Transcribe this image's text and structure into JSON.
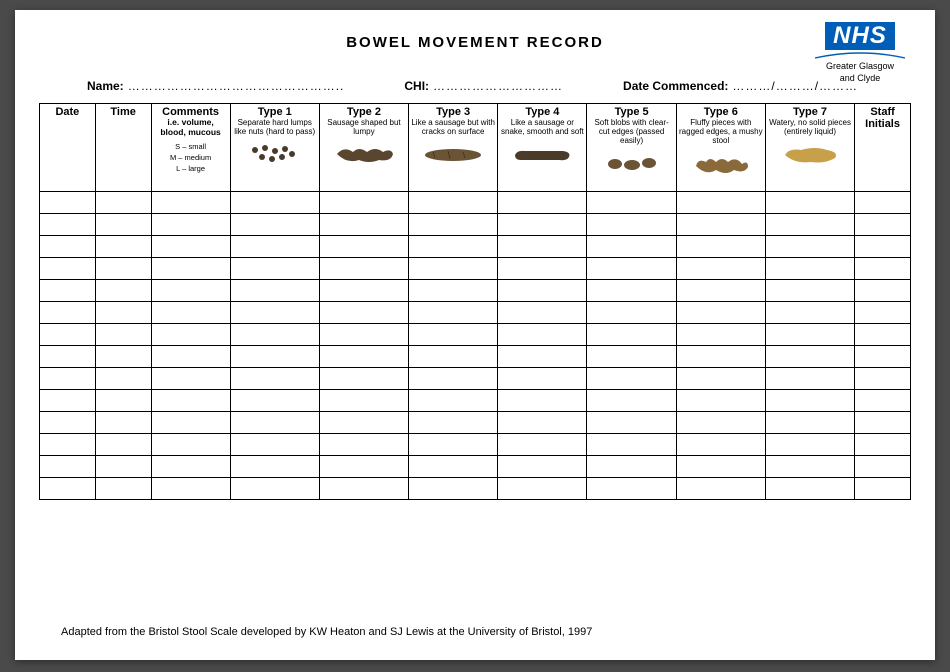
{
  "logo": {
    "text": "NHS",
    "sub1": "Greater Glasgow",
    "sub2": "and Clyde",
    "color": "#005EB8"
  },
  "title": "BOWEL MOVEMENT RECORD",
  "fields": {
    "name_label": "Name:",
    "name_dots": "…………………………………………..",
    "chi_label": "CHI:",
    "chi_dots": "…………………………",
    "date_label": "Date Commenced:",
    "date_dots": "………/………/………"
  },
  "columns": {
    "date": "Date",
    "time": "Time",
    "comments": {
      "head": "Comments",
      "sub": "i.e. volume, blood, mucous",
      "legend": "S – small\nM – medium\nL – large"
    },
    "types": [
      {
        "head": "Type 1",
        "sub": "Separate hard lumps like nuts (hard to pass)"
      },
      {
        "head": "Type 2",
        "sub": "Sausage shaped but lumpy"
      },
      {
        "head": "Type 3",
        "sub": "Like a sausage but with cracks on surface"
      },
      {
        "head": "Type 4",
        "sub": "Like a sausage or snake, smooth and soft"
      },
      {
        "head": "Type 5",
        "sub": "Soft blobs with clear-cut edges (passed easily)"
      },
      {
        "head": "Type 6",
        "sub": "Fluffy pieces with ragged edges, a mushy stool"
      },
      {
        "head": "Type 7",
        "sub": "Watery, no solid pieces (entirely liquid)"
      }
    ],
    "staff": {
      "head": "Staff",
      "sub": "Initials"
    }
  },
  "rows": 14,
  "footer": "Adapted from the Bristol Stool Scale developed by KW Heaton and SJ Lewis at the University of Bristol, 1997",
  "stool_colors": {
    "dark": "#4a3a2a",
    "mid": "#6b5436",
    "light": "#a07a3a",
    "liquid": "#c9a04a"
  }
}
